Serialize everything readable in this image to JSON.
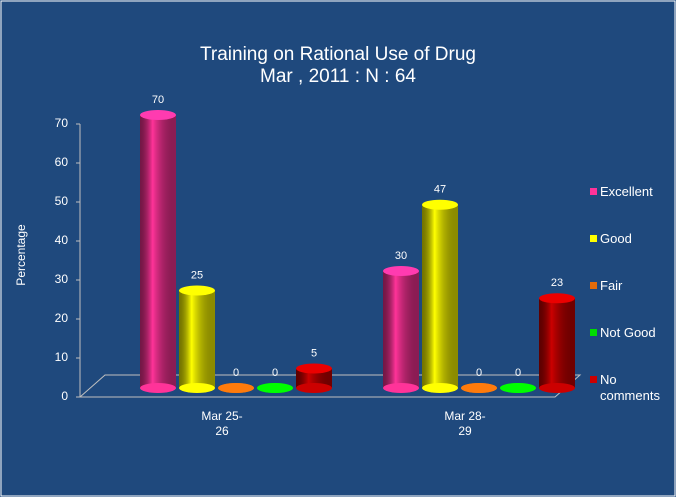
{
  "chart_data": {
    "type": "bar",
    "title": "Training on Rational Use of Drug",
    "subtitle": "Mar , 2011 : N : 64",
    "y_label": "Percentage",
    "categories": [
      "Mar 25-26",
      "Mar 28-29"
    ],
    "series": [
      {
        "name": "Excellent",
        "color": "#ff3399",
        "values": [
          70,
          30
        ]
      },
      {
        "name": "Good",
        "color": "#ffff00",
        "values": [
          25,
          47
        ]
      },
      {
        "name": "Fair",
        "color": "#e26b0a",
        "values": [
          0,
          0
        ]
      },
      {
        "name": "Not Good",
        "color": "#00dd00",
        "values": [
          0,
          0
        ]
      },
      {
        "name": "No comments",
        "color": "#cc0000",
        "values": [
          5,
          23
        ]
      }
    ],
    "ylim": [
      0,
      70
    ],
    "yticks": [
      0,
      10,
      20,
      30,
      40,
      50,
      60,
      70
    ],
    "legend": "right"
  }
}
